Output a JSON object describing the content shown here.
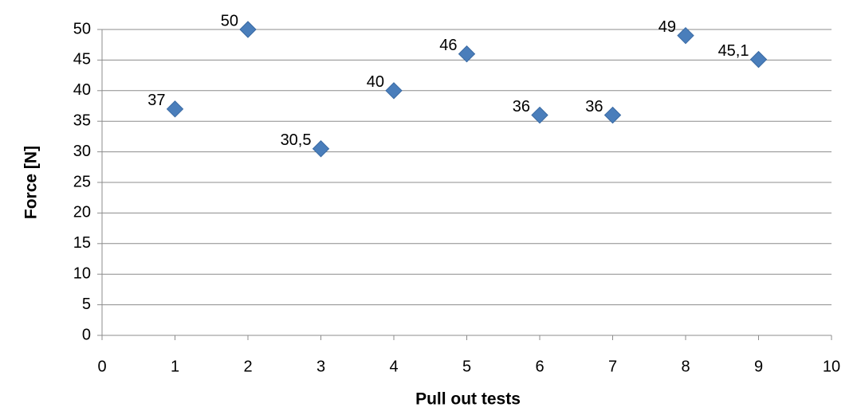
{
  "chart_data": {
    "type": "scatter",
    "x_label": "Pull out tests",
    "y_label": "Force [N]",
    "x": [
      1,
      2,
      3,
      4,
      5,
      6,
      7,
      8,
      9
    ],
    "values": [
      37,
      50,
      30.5,
      40,
      46,
      36,
      36,
      49,
      45.1
    ],
    "value_labels": [
      "37",
      "50",
      "30,5",
      "40",
      "46",
      "36",
      "36",
      "49",
      "45,1"
    ],
    "color": "#4a7ebb",
    "xlim": [
      0,
      10
    ],
    "xticks": [
      0,
      1,
      2,
      3,
      4,
      5,
      6,
      7,
      8,
      9,
      10
    ],
    "ylim": [
      0,
      50
    ],
    "yticks": [
      0,
      5,
      10,
      15,
      20,
      25,
      30,
      35,
      40,
      45,
      50
    ],
    "grid": true
  }
}
